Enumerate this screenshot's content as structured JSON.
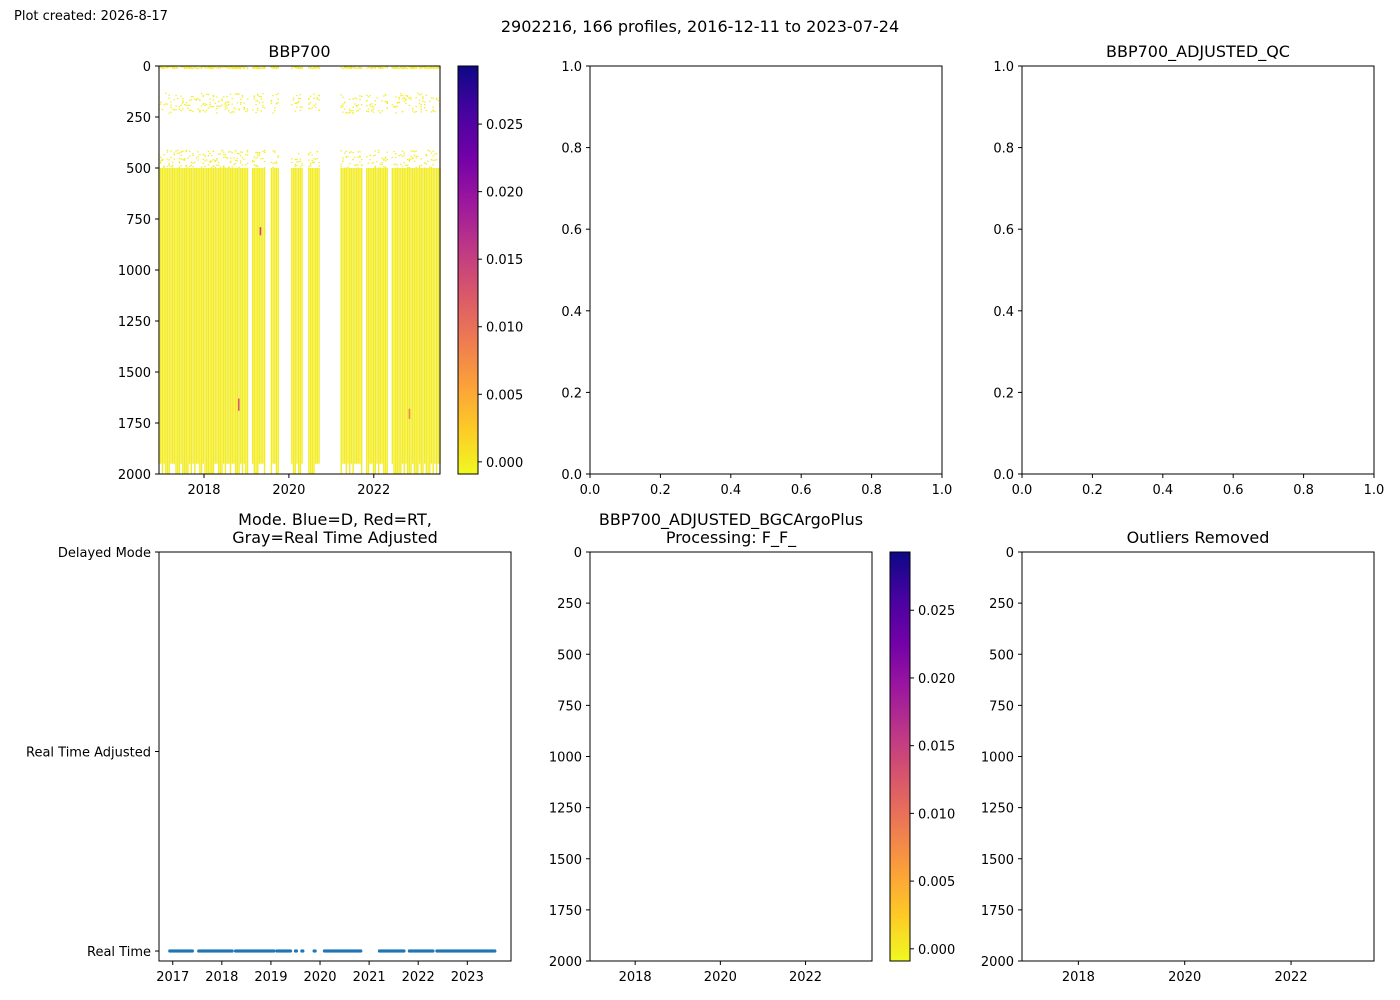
{
  "figure": {
    "created_label": "Plot created: 2026-8-17",
    "suptitle": "2902216, 166 profiles, 2016-12-11 to 2023-07-24"
  },
  "colormap": {
    "name": "plasma_r",
    "stops": [
      "#f0f921",
      "#fdca26",
      "#fb9f3a",
      "#ed7953",
      "#d8576b",
      "#bd3786",
      "#9c179e",
      "#7201a8",
      "#46039f",
      "#0d0887"
    ]
  },
  "chart_data": [
    {
      "id": "bbp700",
      "type": "heatmap",
      "title": "BBP700",
      "xlabel": "",
      "ylabel": "",
      "xlim": [
        2016.94,
        2023.56
      ],
      "xticks": [
        2018,
        2020,
        2022
      ],
      "xticklabels": [
        "2018",
        "2020",
        "2022"
      ],
      "ylim": [
        2000,
        0
      ],
      "yticks": [
        0,
        250,
        500,
        750,
        1000,
        1250,
        1500,
        1750,
        2000
      ],
      "yticklabels": [
        "0",
        "250",
        "500",
        "750",
        "1000",
        "1250",
        "1500",
        "1750",
        "2000"
      ],
      "colorbar": {
        "range": [
          -0.0009,
          0.0293
        ],
        "ticks": [
          0.0,
          0.005,
          0.01,
          0.015,
          0.02,
          0.025
        ],
        "ticklabels": [
          "0.000",
          "0.005",
          "0.010",
          "0.015",
          "0.020",
          "0.025"
        ]
      },
      "value_note": "near-zero values (yellow) almost everywhere",
      "data_gaps": [
        [
          2019.05,
          2019.12
        ],
        [
          2019.45,
          2019.58
        ],
        [
          2019.75,
          2020.05
        ],
        [
          2020.35,
          2020.45
        ],
        [
          2020.72,
          2021.22
        ],
        [
          2021.72,
          2021.82
        ],
        [
          2022.35,
          2022.42
        ]
      ],
      "sparse_depth_bands": [
        [
          0,
          10
        ],
        [
          130,
          230
        ],
        [
          410,
          500
        ]
      ],
      "deep_limit_depth": 1950,
      "highlights": [
        {
          "date": 2018.82,
          "depth_from": 1630,
          "depth_to": 1690,
          "value": 0.012
        },
        {
          "date": 2019.33,
          "depth_from": 790,
          "depth_to": 830,
          "value": 0.014
        },
        {
          "date": 2022.84,
          "depth_from": 1680,
          "depth_to": 1730,
          "value": 0.008
        }
      ]
    },
    {
      "id": "empty-1",
      "type": "scatter",
      "title": "",
      "xlim": [
        0,
        1
      ],
      "ylim": [
        0,
        1
      ],
      "xticks": [
        0,
        0.2,
        0.4,
        0.6,
        0.8,
        1.0
      ],
      "xticklabels": [
        "0.0",
        "0.2",
        "0.4",
        "0.6",
        "0.8",
        "1.0"
      ],
      "yticks": [
        0,
        0.2,
        0.4,
        0.6,
        0.8,
        1.0
      ],
      "yticklabels": [
        "0.0",
        "0.2",
        "0.4",
        "0.6",
        "0.8",
        "1.0"
      ],
      "points": []
    },
    {
      "id": "bbp700-adjusted-qc",
      "type": "scatter",
      "title": "BBP700_ADJUSTED_QC",
      "xlim": [
        0,
        1
      ],
      "ylim": [
        0,
        1
      ],
      "xticks": [
        0,
        0.2,
        0.4,
        0.6,
        0.8,
        1.0
      ],
      "xticklabels": [
        "0.0",
        "0.2",
        "0.4",
        "0.6",
        "0.8",
        "1.0"
      ],
      "yticks": [
        0,
        0.2,
        0.4,
        0.6,
        0.8,
        1.0
      ],
      "yticklabels": [
        "0.0",
        "0.2",
        "0.4",
        "0.6",
        "0.8",
        "1.0"
      ],
      "points": []
    },
    {
      "id": "mode",
      "type": "scatter",
      "title_lines": [
        "Mode. Blue=D, Red=RT,",
        "Gray=Real Time Adjusted"
      ],
      "xlim": [
        2016.72,
        2023.89
      ],
      "xticks": [
        2017,
        2018,
        2019,
        2020,
        2021,
        2022,
        2023
      ],
      "xticklabels": [
        "2017",
        "2018",
        "2019",
        "2020",
        "2021",
        "2022",
        "2023"
      ],
      "ylim": [
        -0.05,
        2.0
      ],
      "yticks": [
        0,
        1,
        2
      ],
      "yticklabels": [
        "Real Time",
        "Real Time Adjusted",
        "Delayed Mode"
      ],
      "series": [
        {
          "color": "#1f77b4",
          "mode_value": 0,
          "segments": [
            [
              2016.94,
              2017.41
            ],
            [
              2017.53,
              2018.22
            ],
            [
              2018.28,
              2019.07
            ],
            [
              2019.12,
              2019.4
            ],
            [
              2019.5,
              2019.53
            ],
            [
              2019.63,
              2019.66
            ],
            [
              2019.88,
              2019.91
            ],
            [
              2020.09,
              2020.83
            ],
            [
              2021.21,
              2021.72
            ],
            [
              2021.82,
              2022.31
            ],
            [
              2022.38,
              2023.56
            ]
          ]
        }
      ]
    },
    {
      "id": "bbp700-adjusted-bgcargoplus",
      "type": "heatmap",
      "title_lines": [
        "BBP700_ADJUSTED_BGCArgoPlus",
        "Processing: F_F_"
      ],
      "xlim": [
        2016.94,
        2023.56
      ],
      "xticks": [
        2018,
        2020,
        2022
      ],
      "xticklabels": [
        "2018",
        "2020",
        "2022"
      ],
      "ylim": [
        2000,
        0
      ],
      "yticks": [
        0,
        250,
        500,
        750,
        1000,
        1250,
        1500,
        1750,
        2000
      ],
      "yticklabels": [
        "0",
        "250",
        "500",
        "750",
        "1000",
        "1250",
        "1500",
        "1750",
        "2000"
      ],
      "colorbar": {
        "range": [
          -0.0009,
          0.0293
        ],
        "ticks": [
          0.0,
          0.005,
          0.01,
          0.015,
          0.02,
          0.025
        ],
        "ticklabels": [
          "0.000",
          "0.005",
          "0.010",
          "0.015",
          "0.020",
          "0.025"
        ]
      },
      "values": []
    },
    {
      "id": "outliers-removed",
      "type": "heatmap",
      "title": "Outliers Removed",
      "xlim": [
        2016.94,
        2023.56
      ],
      "xticks": [
        2018,
        2020,
        2022
      ],
      "xticklabels": [
        "2018",
        "2020",
        "2022"
      ],
      "ylim": [
        2000,
        0
      ],
      "yticks": [
        0,
        250,
        500,
        750,
        1000,
        1250,
        1500,
        1750,
        2000
      ],
      "yticklabels": [
        "0",
        "250",
        "500",
        "750",
        "1000",
        "1250",
        "1500",
        "1750",
        "2000"
      ],
      "values": []
    }
  ]
}
